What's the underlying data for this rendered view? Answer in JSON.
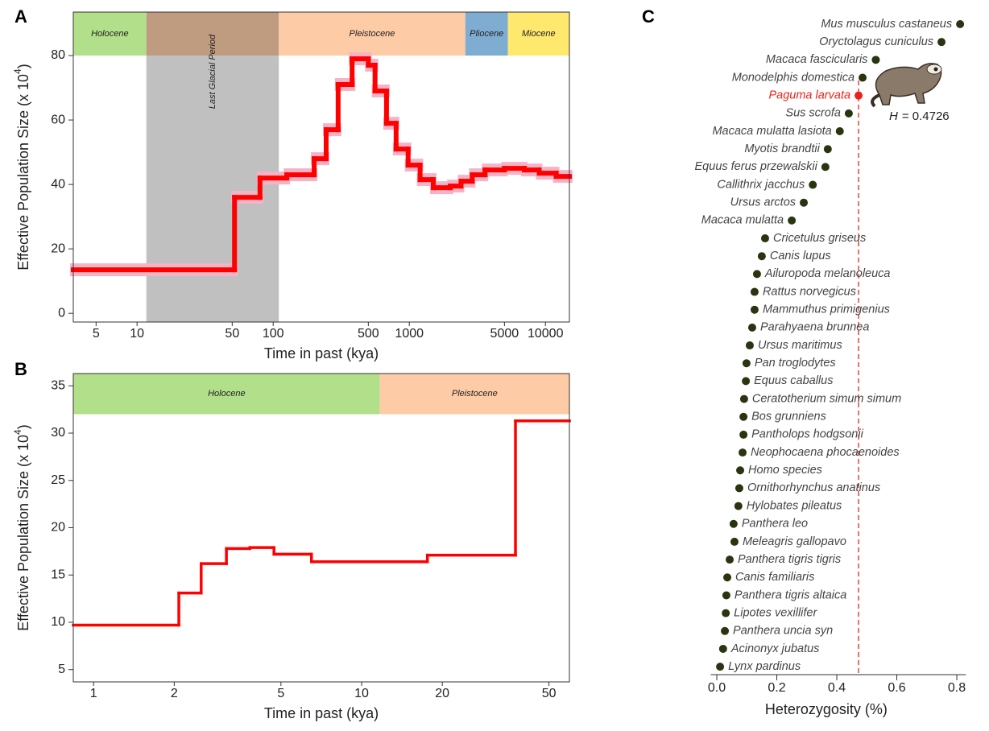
{
  "chart_data": [
    {
      "type": "step",
      "panel": "A",
      "xlabel": "Time in past (kya)",
      "ylabel": "Effective Population Size (x 10",
      "ylabel_sup": "4",
      "ylabel_end": ")",
      "log_x": true,
      "xlim": [
        3.4,
        15000
      ],
      "ylim": [
        -2.7,
        93.5
      ],
      "xticks": [
        5,
        10,
        50,
        100,
        500,
        1000,
        5000,
        10000
      ],
      "yticks": [
        0,
        20,
        40,
        60,
        80
      ],
      "epoch_floor": 80,
      "epochs": [
        {
          "name": "Holocene",
          "start": 3.4,
          "end": 11.7,
          "color": "#b2df8a"
        },
        {
          "name": "Last Glacial Period",
          "start": 11.7,
          "end": 110,
          "color": "#bf9b80",
          "shade": "#c0c0c0"
        },
        {
          "name": "Pleistocene",
          "start": 110,
          "end": 2580,
          "color": "#fdcba6"
        },
        {
          "name": "Pliocene",
          "start": 2580,
          "end": 5300,
          "color": "#7fadd1"
        },
        {
          "name": "Miocene",
          "start": 5300,
          "end": 15000,
          "color": "#ffe86e"
        }
      ],
      "series": [
        {
          "color": "#ff0000",
          "band_color": "#f7b3c6",
          "x": [
            3.4,
            52,
            80,
            126,
            200,
            245,
            300,
            380,
            500,
            560,
            680,
            800,
            980,
            1200,
            1500,
            2000,
            2400,
            2900,
            3600,
            5000,
            7000,
            9000,
            12000
          ],
          "values": [
            13.5,
            36,
            42,
            43,
            48,
            57,
            71,
            79,
            77,
            69,
            59,
            51,
            46,
            41.5,
            39,
            39.5,
            41,
            43,
            44.5,
            45,
            44.5,
            43.5,
            42.5
          ]
        }
      ]
    },
    {
      "type": "step",
      "panel": "B",
      "xlabel": "Time in past (kya)",
      "ylabel": "Effective Population Size (x 10",
      "ylabel_sup": "4",
      "ylabel_end": ")",
      "log_x": true,
      "xlim": [
        0.84,
        59.6
      ],
      "ylim": [
        3.7,
        36.3
      ],
      "xticks": [
        1,
        2,
        5,
        10,
        20,
        50
      ],
      "yticks": [
        5,
        10,
        15,
        20,
        25,
        30,
        35
      ],
      "epoch_floor": 32,
      "epochs": [
        {
          "name": "Holocene",
          "start": 0.84,
          "end": 11.7,
          "color": "#b2df8a"
        },
        {
          "name": "Pleistocene",
          "start": 11.7,
          "end": 59.6,
          "color": "#fdcba6"
        }
      ],
      "series": [
        {
          "color": "#ff0000",
          "x": [
            0.84,
            2.08,
            2.52,
            3.13,
            3.83,
            4.71,
            6.5,
            17.6,
            37.5
          ],
          "values": [
            9.7,
            13.1,
            16.2,
            17.8,
            17.9,
            17.2,
            16.4,
            17.1,
            31.3
          ]
        }
      ]
    },
    {
      "type": "dot",
      "panel": "C",
      "xlabel": "Heterozygosity (%)",
      "xlim": [
        -0.02,
        0.83
      ],
      "xticks": [
        {
          "value": 0,
          "label": "0.0"
        },
        0.2,
        0.4,
        0.6,
        {
          "value": 0.8,
          "label": "0.8"
        }
      ],
      "categories": [
        "Mus musculus castaneus",
        "Oryctolagus cuniculus",
        "Macaca fascicularis",
        "Monodelphis domestica",
        "Paguma larvata",
        "Sus scrofa",
        "Macaca mulatta lasiota",
        "Myotis brandtii",
        "Equus ferus przewalskii",
        "Callithrix jacchus",
        "Ursus arctos",
        "Macaca mulatta",
        "Cricetulus griseus",
        "Canis lupus",
        "Ailuropoda melanoleuca",
        "Rattus norvegicus",
        "Mammuthus primigenius",
        "Parahyaena brunnea",
        "Ursus maritimus",
        "Pan troglodytes",
        "Equus caballus",
        "Ceratotherium simum simum",
        "Bos grunniens",
        "Pantholops hodgsonii",
        "Neophocaena phocaenoides",
        "Homo species",
        "Ornithorhynchus anatinus",
        "Hylobates pileatus",
        "Panthera leo",
        "Meleagris gallopavo",
        "Panthera tigris tigris",
        "Canis familiaris",
        "Panthera tigris altaica",
        "Lipotes vexillifer",
        "Panthera uncia syn",
        "Acinonyx jubatus",
        "Lynx pardinus"
      ],
      "values": [
        0.811,
        0.749,
        0.53,
        0.486,
        0.4726,
        0.44,
        0.41,
        0.37,
        0.362,
        0.32,
        0.29,
        0.25,
        0.161,
        0.15,
        0.134,
        0.126,
        0.126,
        0.118,
        0.11,
        0.099,
        0.097,
        0.091,
        0.089,
        0.089,
        0.086,
        0.078,
        0.075,
        0.072,
        0.056,
        0.059,
        0.043,
        0.035,
        0.032,
        0.03,
        0.027,
        0.021,
        0.011
      ],
      "colors": [
        "#283510",
        "#283510",
        "#283510",
        "#283510",
        "#e8231a",
        "#283510",
        "#283510",
        "#283510",
        "#283510",
        "#283510",
        "#283510",
        "#283510",
        "#283510",
        "#283510",
        "#283510",
        "#283510",
        "#283510",
        "#283510",
        "#283510",
        "#283510",
        "#283510",
        "#283510",
        "#283510",
        "#283510",
        "#283510",
        "#283510",
        "#283510",
        "#283510",
        "#283510",
        "#283510",
        "#283510",
        "#283510",
        "#283510",
        "#283510",
        "#283510",
        "#283510",
        "#283510"
      ],
      "reference": {
        "value": 0.4726,
        "symbol": "H",
        "label": "= 0.4726",
        "color": "#e8231a"
      }
    }
  ]
}
